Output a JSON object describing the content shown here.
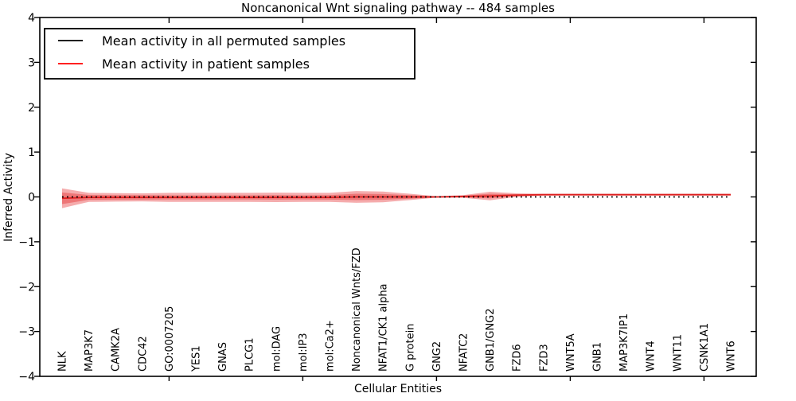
{
  "title": "Noncanonical Wnt signaling pathway -- 484 samples",
  "axes": {
    "ylabel": "Inferred Activity",
    "xlabel": "Cellular Entities",
    "yticks": [
      {
        "value": 4,
        "label": "4"
      },
      {
        "value": 3,
        "label": "3"
      },
      {
        "value": 2,
        "label": "2"
      },
      {
        "value": 1,
        "label": "1"
      },
      {
        "value": 0,
        "label": "0"
      },
      {
        "value": -1,
        "label": "−1"
      },
      {
        "value": -2,
        "label": "−2"
      },
      {
        "value": -3,
        "label": "−3"
      },
      {
        "value": -4,
        "label": "−4"
      }
    ]
  },
  "legend": {
    "items": [
      {
        "label": "Mean activity in all permuted samples",
        "color": "#000000"
      },
      {
        "label": "Mean activity in patient samples",
        "color": "#ff0000"
      }
    ]
  },
  "chart_data": {
    "type": "line",
    "title": "Noncanonical Wnt signaling pathway -- 484 samples",
    "xlabel": "Cellular Entities",
    "ylabel": "Inferred Activity",
    "ylim": [
      -4,
      4
    ],
    "grid": false,
    "legend_position": "upper left",
    "x_major_tick_indices": [
      4,
      9,
      14,
      19,
      24
    ],
    "categories": [
      "NLK",
      "MAP3K7",
      "CAMK2A",
      "CDC42",
      "GO:0007205",
      "YES1",
      "GNAS",
      "PLCG1",
      "mol:DAG",
      "mol:IP3",
      "mol:Ca2+",
      "Noncanonical Wnts/FZD",
      "NFAT1/CK1 alpha",
      "G protein",
      "GNG2",
      "NFATC2",
      "GNB1/GNG2",
      "FZD6",
      "FZD3",
      "WNT5A",
      "GNB1",
      "MAP3K7IP1",
      "WNT4",
      "WNT11",
      "CSNK1A1",
      "WNT6"
    ],
    "series": [
      {
        "name": "Mean activity in all permuted samples",
        "color": "#000000",
        "style": "dotted",
        "values": [
          0,
          0,
          0,
          0,
          0,
          0,
          0,
          0,
          0,
          0,
          0,
          0,
          0,
          0,
          0,
          0,
          0,
          0,
          0,
          0,
          0,
          0,
          0,
          0,
          0,
          0
        ]
      },
      {
        "name": "Mean activity in patient samples",
        "color": "#de2020",
        "style": "solid",
        "values": [
          -0.03,
          -0.01,
          -0.01,
          -0.01,
          -0.01,
          -0.01,
          -0.01,
          -0.01,
          -0.01,
          -0.01,
          -0.01,
          0.0,
          0.0,
          0.0,
          0.0,
          0.01,
          0.02,
          0.04,
          0.05,
          0.05,
          0.05,
          0.05,
          0.05,
          0.05,
          0.05,
          0.05
        ]
      }
    ],
    "bands": [
      {
        "name": "patient-std-outer",
        "color": "#e41a1c",
        "opacity": 0.36,
        "center_series": 1,
        "half_widths": [
          0.22,
          0.1,
          0.095,
          0.09,
          0.1,
          0.1,
          0.1,
          0.1,
          0.105,
          0.1,
          0.1,
          0.13,
          0.12,
          0.07,
          0.015,
          0.03,
          0.095,
          0.04,
          0.022,
          0.02,
          0.02,
          0.02,
          0.02,
          0.02,
          0.02,
          0.02
        ]
      },
      {
        "name": "patient-std-inner",
        "color": "#e41a1c",
        "opacity": 0.36,
        "center_series": 1,
        "half_widths": [
          0.13,
          0.055,
          0.05,
          0.05,
          0.045,
          0.045,
          0.045,
          0.045,
          0.05,
          0.045,
          0.05,
          0.07,
          0.065,
          0.04,
          0.01,
          0.018,
          0.05,
          0.022,
          0.013,
          0.012,
          0.012,
          0.012,
          0.012,
          0.012,
          0.012,
          0.012
        ]
      }
    ]
  },
  "colors": {
    "axis": "#000000",
    "background": "#ffffff",
    "band_fill": "#e41a1c",
    "patient_line": "#de2020",
    "permuted_line": "#000000"
  }
}
